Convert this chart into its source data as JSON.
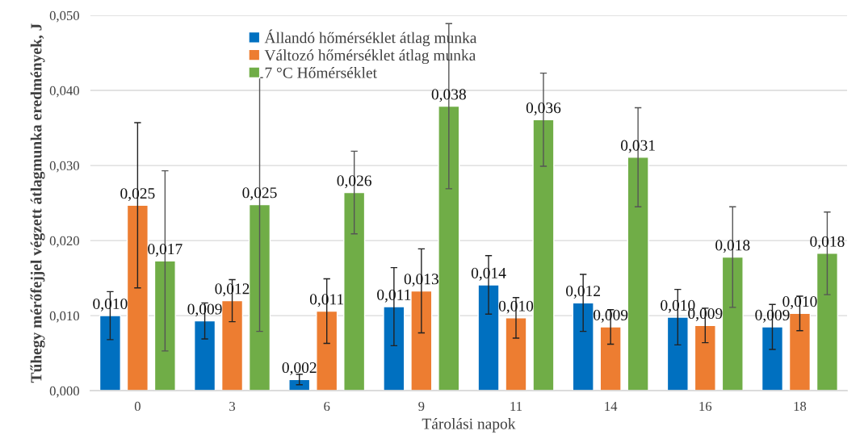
{
  "chart_data": {
    "type": "bar",
    "xlabel": "Tárolási napok",
    "ylabel": "Tűhegy mérőfejjel végzett átlagmunka eredmények, J",
    "categories": [
      "0",
      "3",
      "6",
      "9",
      "11",
      "14",
      "16",
      "18"
    ],
    "series": [
      {
        "name": "Állandó hőmérséklet átlag munka",
        "color": "#0070c0",
        "values": [
          0.01,
          0.0093,
          0.0015,
          0.0112,
          0.0141,
          0.0117,
          0.0098,
          0.0085
        ],
        "errors": [
          0.0032,
          0.0024,
          0.0007,
          0.0052,
          0.0039,
          0.0038,
          0.0037,
          0.003
        ],
        "value_labels": [
          "0,010",
          "0,009",
          "0,002",
          "0,011",
          "0,014",
          "0,012",
          "0,010",
          "0,009"
        ]
      },
      {
        "name": "Változó hőmérséklet átlag munka",
        "color": "#ed7d31",
        "values": [
          0.0247,
          0.012,
          0.0106,
          0.0133,
          0.0097,
          0.0085,
          0.0087,
          0.0103
        ],
        "errors": [
          0.011,
          0.0028,
          0.0043,
          0.0056,
          0.0027,
          0.0023,
          0.0023,
          0.0023
        ],
        "value_labels": [
          "0,025",
          "0,012",
          "0,011",
          "0,013",
          "0,010",
          "0,009",
          "0,009",
          "0,010"
        ]
      },
      {
        "name": "7 °C Hőmérséklet",
        "color": "#70ad47",
        "values": [
          0.0173,
          0.0248,
          0.0264,
          0.0379,
          0.0361,
          0.0311,
          0.0178,
          0.0183
        ],
        "errors": [
          0.012,
          0.0169,
          0.0055,
          0.011,
          0.0062,
          0.0066,
          0.0067,
          0.0055
        ],
        "value_labels": [
          "0,017",
          "0,025",
          "0,026",
          "0,038",
          "0,036",
          "0,031",
          "0,018",
          "0,018"
        ]
      }
    ],
    "ylim": [
      0,
      0.05
    ],
    "yticks": [
      {
        "value": 0,
        "label": "0,000"
      },
      {
        "value": 0.01,
        "label": "0,010"
      },
      {
        "value": 0.02,
        "label": "0,020"
      },
      {
        "value": 0.03,
        "label": "0,030"
      },
      {
        "value": 0.04,
        "label": "0,040"
      },
      {
        "value": 0.05,
        "label": "0,050"
      }
    ],
    "grid": "y",
    "legend": "top"
  }
}
